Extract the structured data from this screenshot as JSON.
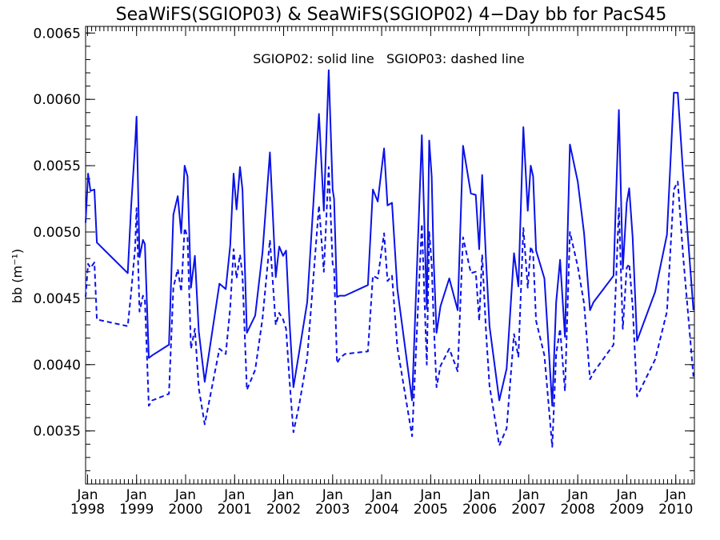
{
  "chart_data": {
    "type": "line",
    "title": "SeaWiFS(SGIOP03) & SeaWiFS(SGIOP02) 4−Day bb for PacS45",
    "annotation": "SGIOP02: solid line   SGIOP03: dashed line",
    "ylabel": "bb (m⁻¹)",
    "ylim": [
      0.0031,
      0.00655
    ],
    "xlim": [
      1997.96,
      2010.38
    ],
    "y_ticks": [
      {
        "v": 0.0035,
        "label": "0.0035"
      },
      {
        "v": 0.004,
        "label": "0.0040"
      },
      {
        "v": 0.0045,
        "label": "0.0045"
      },
      {
        "v": 0.005,
        "label": "0.0050"
      },
      {
        "v": 0.0055,
        "label": "0.0055"
      },
      {
        "v": 0.006,
        "label": "0.0060"
      },
      {
        "v": 0.0065,
        "label": "0.0065"
      }
    ],
    "x_ticks": [
      {
        "v": 1998,
        "month": "Jan",
        "year": "1998"
      },
      {
        "v": 1999,
        "month": "Jan",
        "year": "1999"
      },
      {
        "v": 2000,
        "month": "Jan",
        "year": "2000"
      },
      {
        "v": 2001,
        "month": "Jan",
        "year": "2001"
      },
      {
        "v": 2002,
        "month": "Jan",
        "year": "2002"
      },
      {
        "v": 2003,
        "month": "Jan",
        "year": "2003"
      },
      {
        "v": 2004,
        "month": "Jan",
        "year": "2004"
      },
      {
        "v": 2005,
        "month": "Jan",
        "year": "2005"
      },
      {
        "v": 2006,
        "month": "Jan",
        "year": "2006"
      },
      {
        "v": 2007,
        "month": "Jan",
        "year": "2007"
      },
      {
        "v": 2008,
        "month": "Jan",
        "year": "2008"
      },
      {
        "v": 2009,
        "month": "Jan",
        "year": "2009"
      },
      {
        "v": 2010,
        "month": "Jan",
        "year": "2010"
      }
    ],
    "x": [
      1997.96,
      1998.01,
      1998.06,
      1998.14,
      1998.19,
      1998.82,
      1998.89,
      1998.97,
      1999.0,
      1999.06,
      1999.13,
      1999.17,
      1999.25,
      1999.32,
      1999.66,
      1999.75,
      1999.84,
      1999.91,
      1999.98,
      2000.04,
      2000.11,
      2000.19,
      2000.27,
      2000.39,
      2000.69,
      2000.82,
      2000.91,
      2000.98,
      2001.04,
      2001.11,
      2001.16,
      2001.25,
      2001.42,
      2001.57,
      2001.72,
      2001.84,
      2001.91,
      2001.99,
      2002.05,
      2002.12,
      2002.2,
      2002.32,
      2002.48,
      2002.72,
      2002.82,
      2002.92,
      2003.0,
      2003.03,
      2003.09,
      2003.15,
      2003.25,
      2003.72,
      2003.82,
      2003.92,
      2004.05,
      2004.12,
      2004.21,
      2004.32,
      2004.62,
      2004.82,
      2004.92,
      2004.97,
      2005.02,
      2005.06,
      2005.12,
      2005.2,
      2005.38,
      2005.55,
      2005.66,
      2005.82,
      2005.92,
      2005.99,
      2006.05,
      2006.13,
      2006.2,
      2006.4,
      2006.55,
      2006.7,
      2006.79,
      2006.89,
      2006.98,
      2007.04,
      2007.09,
      2007.15,
      2007.32,
      2007.48,
      2007.56,
      2007.64,
      2007.74,
      2007.84,
      2008.0,
      2008.13,
      2008.25,
      2008.32,
      2008.73,
      2008.84,
      2008.92,
      2009.0,
      2009.05,
      2009.12,
      2009.21,
      2009.58,
      2009.82,
      2009.96,
      2010.04,
      2010.15,
      2010.36
    ],
    "series": [
      {
        "name": "SGIOP02",
        "style": "solid",
        "color": "#0a12e8",
        "values": [
          0.00507,
          0.00544,
          0.00531,
          0.00532,
          0.00492,
          0.00469,
          0.0052,
          0.00566,
          0.00587,
          0.00481,
          0.00494,
          0.00491,
          0.00405,
          0.00407,
          0.00415,
          0.00513,
          0.00527,
          0.00499,
          0.0055,
          0.00542,
          0.00458,
          0.00482,
          0.00425,
          0.00387,
          0.00461,
          0.00457,
          0.0049,
          0.00544,
          0.00517,
          0.00549,
          0.00532,
          0.00424,
          0.00437,
          0.00485,
          0.0056,
          0.00466,
          0.00489,
          0.00482,
          0.00486,
          0.00432,
          0.00383,
          0.0041,
          0.00447,
          0.00589,
          0.00516,
          0.00622,
          0.00532,
          0.00525,
          0.00451,
          0.00452,
          0.00452,
          0.0046,
          0.00532,
          0.00523,
          0.00563,
          0.0052,
          0.00522,
          0.00457,
          0.00373,
          0.00573,
          0.00442,
          0.00569,
          0.00542,
          0.0048,
          0.00424,
          0.00444,
          0.00465,
          0.00441,
          0.00565,
          0.00529,
          0.00528,
          0.00487,
          0.00543,
          0.00478,
          0.00429,
          0.00373,
          0.00397,
          0.00484,
          0.00459,
          0.00579,
          0.00516,
          0.0055,
          0.00542,
          0.00486,
          0.00465,
          0.00369,
          0.00447,
          0.00479,
          0.00421,
          0.00566,
          0.00538,
          0.00499,
          0.00441,
          0.00447,
          0.00467,
          0.00592,
          0.00472,
          0.00522,
          0.00533,
          0.00496,
          0.00418,
          0.00455,
          0.00498,
          0.00605,
          0.00605,
          0.00544,
          0.00441
        ]
      },
      {
        "name": "SGIOP03",
        "style": "dashed",
        "color": "#0a12e8",
        "values": [
          0.00451,
          0.00476,
          0.00473,
          0.00477,
          0.00434,
          0.00429,
          0.00455,
          0.00488,
          0.00518,
          0.0044,
          0.00452,
          0.00449,
          0.00369,
          0.00373,
          0.00378,
          0.00458,
          0.00472,
          0.00455,
          0.00503,
          0.00496,
          0.00412,
          0.00427,
          0.00382,
          0.00355,
          0.00412,
          0.00408,
          0.00443,
          0.00487,
          0.00465,
          0.00483,
          0.00467,
          0.00381,
          0.00396,
          0.00435,
          0.00494,
          0.0043,
          0.00439,
          0.00434,
          0.00427,
          0.00388,
          0.00349,
          0.0037,
          0.00405,
          0.0052,
          0.0047,
          0.00549,
          0.00476,
          0.00473,
          0.00401,
          0.00405,
          0.00408,
          0.0041,
          0.00467,
          0.00465,
          0.00499,
          0.00463,
          0.00467,
          0.00413,
          0.00346,
          0.00506,
          0.004,
          0.005,
          0.00476,
          0.00434,
          0.00383,
          0.00399,
          0.00412,
          0.00395,
          0.00496,
          0.00469,
          0.0047,
          0.00433,
          0.00483,
          0.00424,
          0.00384,
          0.00339,
          0.00352,
          0.00423,
          0.00406,
          0.00503,
          0.00458,
          0.00489,
          0.00484,
          0.00433,
          0.00407,
          0.00338,
          0.00408,
          0.00427,
          0.0038,
          0.005,
          0.00474,
          0.00446,
          0.00389,
          0.00394,
          0.00415,
          0.00518,
          0.00427,
          0.00473,
          0.00476,
          0.00444,
          0.00376,
          0.00404,
          0.0044,
          0.00532,
          0.00538,
          0.00482,
          0.00391
        ]
      }
    ]
  }
}
